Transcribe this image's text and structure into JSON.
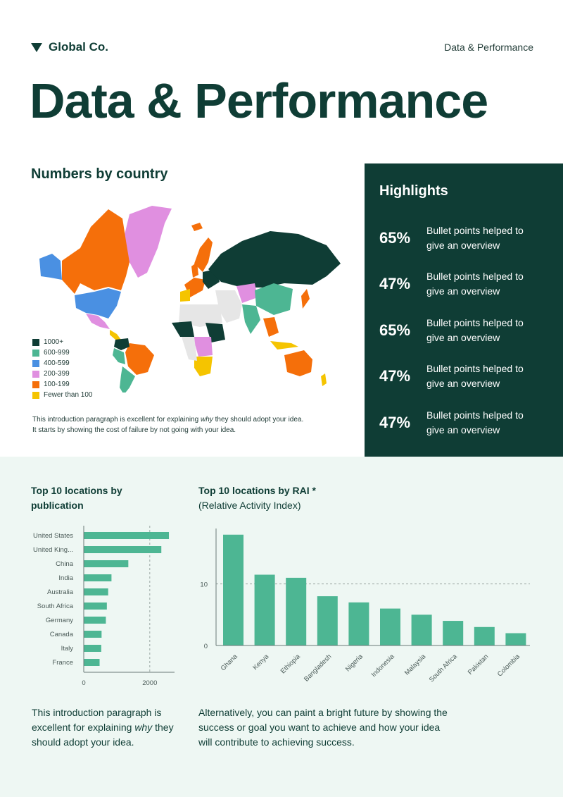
{
  "header": {
    "brand_name": "Global Co.",
    "section_label": "Data & Performance"
  },
  "page_title": "Data & Performance",
  "map_section": {
    "title": "Numbers by country",
    "legend": [
      {
        "label": "1000+",
        "color": "#0f3d35"
      },
      {
        "label": "600-999",
        "color": "#4db693"
      },
      {
        "label": "400-599",
        "color": "#4a90e2"
      },
      {
        "label": "200-399",
        "color": "#e08fe0"
      },
      {
        "label": "100-199",
        "color": "#f56f0a"
      },
      {
        "label": "Fewer than 100",
        "color": "#f5c400"
      }
    ],
    "intro_line1_a": "This introduction paragraph is excellent for explaining ",
    "intro_line1_em": "why",
    "intro_line1_b": " they should adopt your idea.",
    "intro_line2": "It starts by showing the cost of failure by not going with your idea."
  },
  "highlights": {
    "title": "Highlights",
    "items": [
      {
        "value": "65%",
        "text": "Bullet points helped to give an overview"
      },
      {
        "value": "47%",
        "text": "Bullet points helped to give an overview"
      },
      {
        "value": "65%",
        "text": "Bullet points helped to give an overview"
      },
      {
        "value": "47%",
        "text": "Bullet points helped to give an overview"
      },
      {
        "value": "47%",
        "text": "Bullet points helped to give an overview"
      }
    ]
  },
  "bottom": {
    "left_title": "Top 10 locations by publication",
    "right_title": "Top 10 locations by RAI *",
    "right_subtitle": "(Relative Activity Index)",
    "para_left_a": "This introduction paragraph is excellent for explaining ",
    "para_left_em": "why",
    "para_left_b": " they should adopt your idea.",
    "para_right": "Alternatively, you can paint a bright future by showing the success or goal you want to achieve and how your idea will contribute to achieving success."
  },
  "colors": {
    "dark_green": "#0f3d35",
    "bar_green": "#4db693",
    "bottom_background": "#eef7f3"
  },
  "chart_data": [
    {
      "type": "bar",
      "orientation": "horizontal",
      "categories": [
        "United States",
        "United King...",
        "China",
        "India",
        "Australia",
        "South Africa",
        "Germany",
        "Canada",
        "Italy",
        "France"
      ],
      "values": [
        2580,
        2350,
        1350,
        840,
        740,
        700,
        670,
        540,
        530,
        480
      ],
      "xticks": [
        0,
        2000
      ],
      "xlim": [
        0,
        2750
      ],
      "reference_line": 2000,
      "xlabel": "",
      "ylabel": ""
    },
    {
      "type": "bar",
      "orientation": "vertical",
      "categories": [
        "Ghana",
        "Kenya",
        "Ethiopia",
        "Bangladesh",
        "Nigeria",
        "Indonesia",
        "Malaysia",
        "South Africa",
        "Pakistan",
        "Colombia"
      ],
      "values": [
        18,
        11.5,
        11,
        8,
        7,
        6,
        5,
        4,
        3,
        2
      ],
      "yticks": [
        0,
        10
      ],
      "ylim": [
        0,
        19
      ],
      "reference_line": 10,
      "xlabel": "",
      "ylabel": ""
    }
  ]
}
